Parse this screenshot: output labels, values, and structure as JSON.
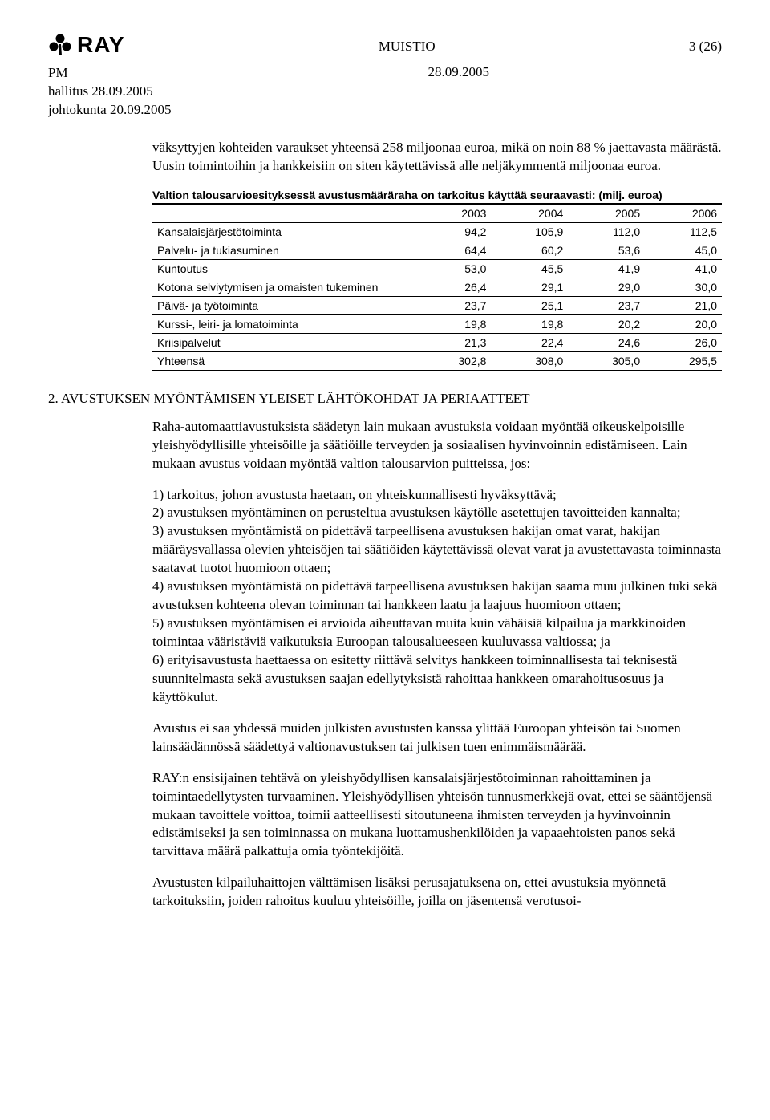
{
  "header": {
    "logo_text": "RAY",
    "doc_type": "MUISTIO",
    "page_no": "3 (26)"
  },
  "meta": {
    "pm": "PM",
    "date": "28.09.2005",
    "line2": "hallitus 28.09.2005",
    "line3": "johtokunta 20.09.2005"
  },
  "intro_para": "väksyttyjen kohteiden varaukset yhteensä 258 miljoonaa euroa, mikä on noin 88 % jaettavasta määrästä. Uusin toimintoihin ja hankkeisiin on siten käytettävissä alle neljäkymmentä miljoonaa euroa.",
  "table": {
    "title": "Valtion talousarvioesityksessä avustusmääräraha on tarkoitus käyttää seuraavasti: (milj. euroa)",
    "columns": [
      "",
      "2003",
      "2004",
      "2005",
      "2006"
    ],
    "col_widths": [
      "46%",
      "13.5%",
      "13.5%",
      "13.5%",
      "13.5%"
    ],
    "font_size": 14,
    "font_family": "Arial",
    "border_color": "#000000",
    "rows": [
      [
        "Kansalaisjärjestötoiminta",
        "94,2",
        "105,9",
        "112,0",
        "112,5"
      ],
      [
        "Palvelu- ja tukiasuminen",
        "64,4",
        "60,2",
        "53,6",
        "45,0"
      ],
      [
        "Kuntoutus",
        "53,0",
        "45,5",
        "41,9",
        "41,0"
      ],
      [
        "Kotona selviytymisen ja omaisten tukeminen",
        "26,4",
        "29,1",
        "29,0",
        "30,0"
      ],
      [
        "Päivä- ja työtoiminta",
        "23,7",
        "25,1",
        "23,7",
        "21,0"
      ],
      [
        "Kurssi-, leiri- ja lomatoiminta",
        "19,8",
        "19,8",
        "20,2",
        "20,0"
      ],
      [
        "Kriisipalvelut",
        "21,3",
        "22,4",
        "24,6",
        "26,0"
      ]
    ],
    "total_row": [
      "Yhteensä",
      "302,8",
      "308,0",
      "305,0",
      "295,5"
    ]
  },
  "section2": {
    "heading": "2. AVUSTUKSEN MYÖNTÄMISEN YLEISET LÄHTÖKOHDAT JA PERIAATTEET",
    "para1": "Raha-automaattiavustuksista säädetyn lain mukaan avustuksia voidaan myöntää oikeuskelpoisille yleishyödyllisille yhteisöille ja säätiöille terveyden ja sosiaalisen hyvinvoinnin edistämiseen. Lain mukaan avustus voidaan myöntää valtion talousarvion puitteissa, jos:",
    "items": [
      "1) tarkoitus, johon avustusta haetaan, on yhteiskunnallisesti hyväksyttävä;",
      "2) avustuksen myöntäminen on perusteltua avustuksen käytölle asetettujen tavoitteiden kannalta;",
      "3) avustuksen myöntämistä on pidettävä tarpeellisena avustuksen hakijan omat varat, hakijan määräysvallassa olevien yhteisöjen tai säätiöiden käytettävissä olevat varat ja avustettavasta toiminnasta saatavat tuotot huomioon ottaen;",
      "4) avustuksen myöntämistä on pidettävä tarpeellisena avustuksen hakijan saama muu julkinen tuki sekä avustuksen kohteena olevan toiminnan tai hankkeen laatu ja laajuus huomioon ottaen;",
      "5) avustuksen myöntämisen ei arvioida aiheuttavan muita kuin vähäisiä kilpailua ja markkinoiden toimintaa vääristäviä vaikutuksia Euroopan talousalueeseen kuuluvassa valtiossa; ja",
      "6) erityisavustusta haettaessa on esitetty riittävä selvitys hankkeen toiminnallisesta tai teknisestä suunnitelmasta sekä avustuksen saajan edellytyksistä rahoittaa hankkeen omarahoitusosuus ja käyttökulut."
    ],
    "para2": "Avustus ei saa yhdessä muiden julkisten avustusten kanssa ylittää Euroopan yhteisön tai Suomen lainsäädännössä säädettyä valtionavustuksen tai julkisen tuen enimmäismäärää.",
    "para3": "RAY:n ensisijainen tehtävä on yleishyödyllisen kansalaisjärjestötoiminnan rahoittaminen ja toimintaedellytysten turvaaminen. Yleishyödyllisen yhteisön tunnusmerkkejä ovat, ettei se sääntöjensä mukaan tavoittele voittoa, toimii aatteellisesti sitoutuneena ihmisten terveyden ja hyvinvoinnin edistämiseksi ja sen toiminnassa on mukana luottamushenkilöiden ja vapaaehtoisten panos sekä tarvittava määrä palkattuja omia työntekijöitä.",
    "para4": "Avustusten kilpailuhaittojen välttämisen lisäksi perusajatuksena on, ettei avustuksia myönnetä tarkoituksiin, joiden rahoitus kuuluu yhteisöille, joilla on jäsentensä verotusoi-"
  }
}
